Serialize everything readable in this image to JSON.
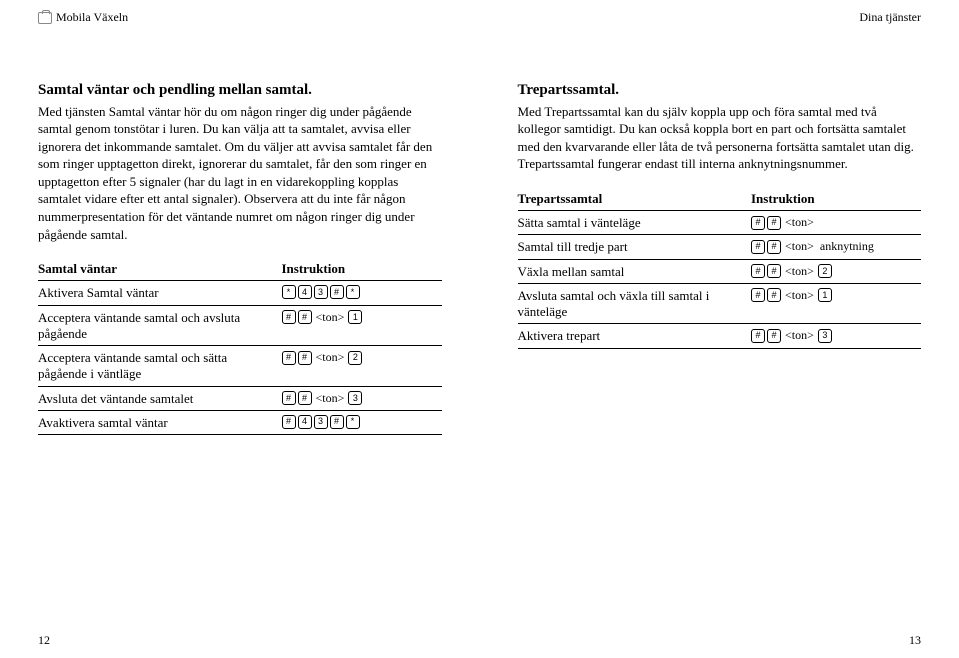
{
  "header": {
    "left_title": "Mobila Växeln",
    "right_title": "Dina tjänster"
  },
  "left_page": {
    "heading": "Samtal väntar och pendling mellan samtal.",
    "para": "Med tjänsten Samtal väntar hör du om någon ringer dig under pågående samtal genom tonstötar i luren. Du kan välja att ta samtalet, avvisa eller ignorera det inkommande samtalet. Om du väljer att avvisa samtalet får den som ringer upptagetton direkt, ignorerar du samtalet, får den som ringer en upptagetton efter 5 signaler (har du lagt in en vidarekoppling kopplas samtalet vidare efter ett antal signaler). Observera att du inte får någon nummerpresentation för det väntande numret om någon ringer dig under pågående samtal.",
    "table": {
      "col1": "Samtal väntar",
      "col2": "Instruktion",
      "rows": [
        {
          "label": "Aktivera Samtal väntar",
          "keys": [
            "*",
            "4",
            "3",
            "#",
            "*"
          ]
        },
        {
          "label": "Acceptera väntande samtal och avsluta pågående",
          "keys": [
            "#",
            "#"
          ],
          "tone": "<ton>",
          "after_keys": [
            "1"
          ]
        },
        {
          "label": "Acceptera väntande samtal och sätta pågående i väntläge",
          "keys": [
            "#",
            "#"
          ],
          "tone": "<ton>",
          "after_keys": [
            "2"
          ]
        },
        {
          "label": "Avsluta det väntande samtalet",
          "keys": [
            "#",
            "#"
          ],
          "tone": "<ton>",
          "after_keys": [
            "3"
          ]
        },
        {
          "label": "Avaktivera samtal väntar",
          "keys": [
            "#",
            "4",
            "3",
            "#",
            "*"
          ]
        }
      ]
    },
    "page_number": "12"
  },
  "right_page": {
    "heading": "Trepartssamtal.",
    "para": "Med Trepartssamtal kan du själv koppla upp och föra samtal med två kollegor samtidigt. Du kan också koppla bort en part och fortsätta samtalet med den kvarvarande eller låta de två personerna fortsätta samtalet utan dig. Trepartssamtal fungerar endast till interna anknytningsnummer.",
    "table": {
      "col1": "Trepartssamtal",
      "col2": "Instruktion",
      "rows": [
        {
          "label": "Sätta samtal i vänteläge",
          "keys": [
            "#",
            "#"
          ],
          "tone": "<ton>"
        },
        {
          "label": "Samtal till tredje part",
          "keys": [
            "#",
            "#"
          ],
          "tone": "<ton>",
          "after_text": "anknytning"
        },
        {
          "label": "Växla mellan samtal",
          "keys": [
            "#",
            "#"
          ],
          "tone": "<ton>",
          "after_keys": [
            "2"
          ]
        },
        {
          "label": "Avsluta samtal och växla till samtal i vänteläge",
          "keys": [
            "#",
            "#"
          ],
          "tone": "<ton>",
          "after_keys": [
            "1"
          ]
        },
        {
          "label": "Aktivera trepart",
          "keys": [
            "#",
            "#"
          ],
          "tone": "<ton>",
          "after_keys": [
            "3"
          ]
        }
      ]
    },
    "page_number": "13"
  }
}
